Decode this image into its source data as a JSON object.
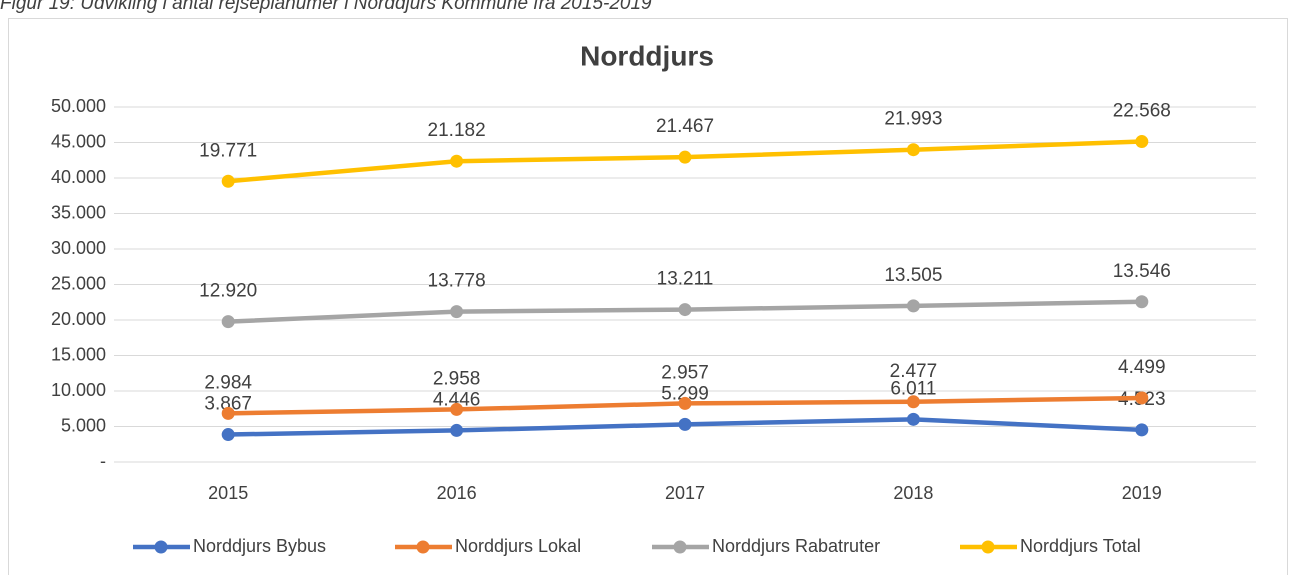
{
  "caption": "Figur 19: Udvikling i antal rejseplanumer i Norddjurs Kommune fra 2015-2019",
  "chart_data": {
    "type": "stacked_line",
    "title": "Norddjurs",
    "categories": [
      "2015",
      "2016",
      "2017",
      "2018",
      "2019"
    ],
    "series": [
      {
        "name": "Norddjurs Bybus",
        "color": "#4472c4",
        "values": [
          3867,
          4446,
          5299,
          6011,
          4523
        ],
        "value_labels": [
          "3.867",
          "4.446",
          "5.299",
          "6.011",
          "4.523"
        ]
      },
      {
        "name": "Norddjurs Lokal",
        "color": "#ed7d31",
        "values": [
          2984,
          2958,
          2957,
          2477,
          4499
        ],
        "value_labels": [
          "2.984",
          "2.958",
          "2.957",
          "2.477",
          "4.499"
        ]
      },
      {
        "name": "Norddjurs Rabatruter",
        "color": "#a5a5a5",
        "values": [
          12920,
          13778,
          13211,
          13505,
          13546
        ],
        "value_labels": [
          "12.920",
          "13.778",
          "13.211",
          "13.505",
          "13.546"
        ]
      },
      {
        "name": "Norddjurs Total",
        "color": "#ffc000",
        "values": [
          19771,
          21182,
          21467,
          21993,
          22568
        ],
        "value_labels": [
          "19.771",
          "21.182",
          "21.467",
          "21.993",
          "22.568"
        ]
      }
    ],
    "ylim": [
      0,
      50000
    ],
    "yticks": [
      {
        "value": 0,
        "label": "-"
      },
      {
        "value": 5000,
        "label": "5.000"
      },
      {
        "value": 10000,
        "label": "10.000"
      },
      {
        "value": 15000,
        "label": "15.000"
      },
      {
        "value": 20000,
        "label": "20.000"
      },
      {
        "value": 25000,
        "label": "25.000"
      },
      {
        "value": 30000,
        "label": "30.000"
      },
      {
        "value": 35000,
        "label": "35.000"
      },
      {
        "value": 40000,
        "label": "40.000"
      },
      {
        "value": 45000,
        "label": "45.000"
      },
      {
        "value": 50000,
        "label": "50.000"
      }
    ],
    "grid": true,
    "legend": "bottom"
  }
}
